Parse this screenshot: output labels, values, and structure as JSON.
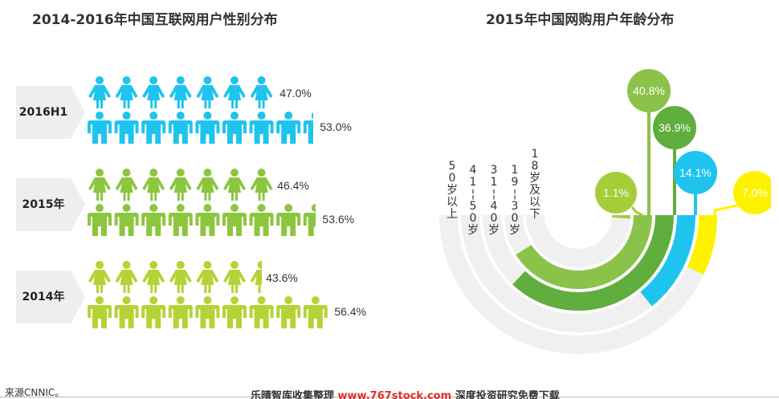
{
  "chart_data": [
    {
      "type": "pictogram",
      "title": "2014-2016年中国互联网用户性别分布",
      "groups": [
        {
          "label": "2016 H1",
          "label_lines": [
            "2016",
            "H1"
          ],
          "female": 47.0,
          "male": 53.0,
          "female_label": "47.0%",
          "male_label": "53.0%",
          "color": "#1ec4ee"
        },
        {
          "label": "2015年",
          "label_lines": [
            "2015",
            "年"
          ],
          "female": 46.4,
          "male": 53.6,
          "female_label": "46.4%",
          "male_label": "53.6%",
          "color": "#8cc63f"
        },
        {
          "label": "2014年",
          "label_lines": [
            "2014",
            "年"
          ],
          "female": 43.6,
          "male": 56.4,
          "female_label": "43.6%",
          "male_label": "56.4%",
          "color": "#b5d334"
        }
      ]
    },
    {
      "type": "radial-bar",
      "title": "2015年中国网购用户年龄分布",
      "categories": [
        "50岁以上",
        "41-50岁",
        "31-40岁",
        "19-30岁",
        "18岁及以下"
      ],
      "values": [
        1.1,
        40.8,
        36.9,
        14.1,
        7.0
      ],
      "value_labels": [
        "1.1%",
        "40.8%",
        "36.9%",
        "14.1%",
        "7.0%"
      ],
      "colors": [
        "#a6cc3a",
        "#8bc34a",
        "#5fae3e",
        "#1ec4ee",
        "#fff200"
      ],
      "track_color": "#f0f0f0"
    }
  ],
  "labels": {
    "source": "来源CNNIC。",
    "watermark_prefix": "乐晴智库收集整理 ",
    "watermark_url": "www.767stock.com",
    "watermark_suffix": " 深度投资研究免费下载"
  }
}
